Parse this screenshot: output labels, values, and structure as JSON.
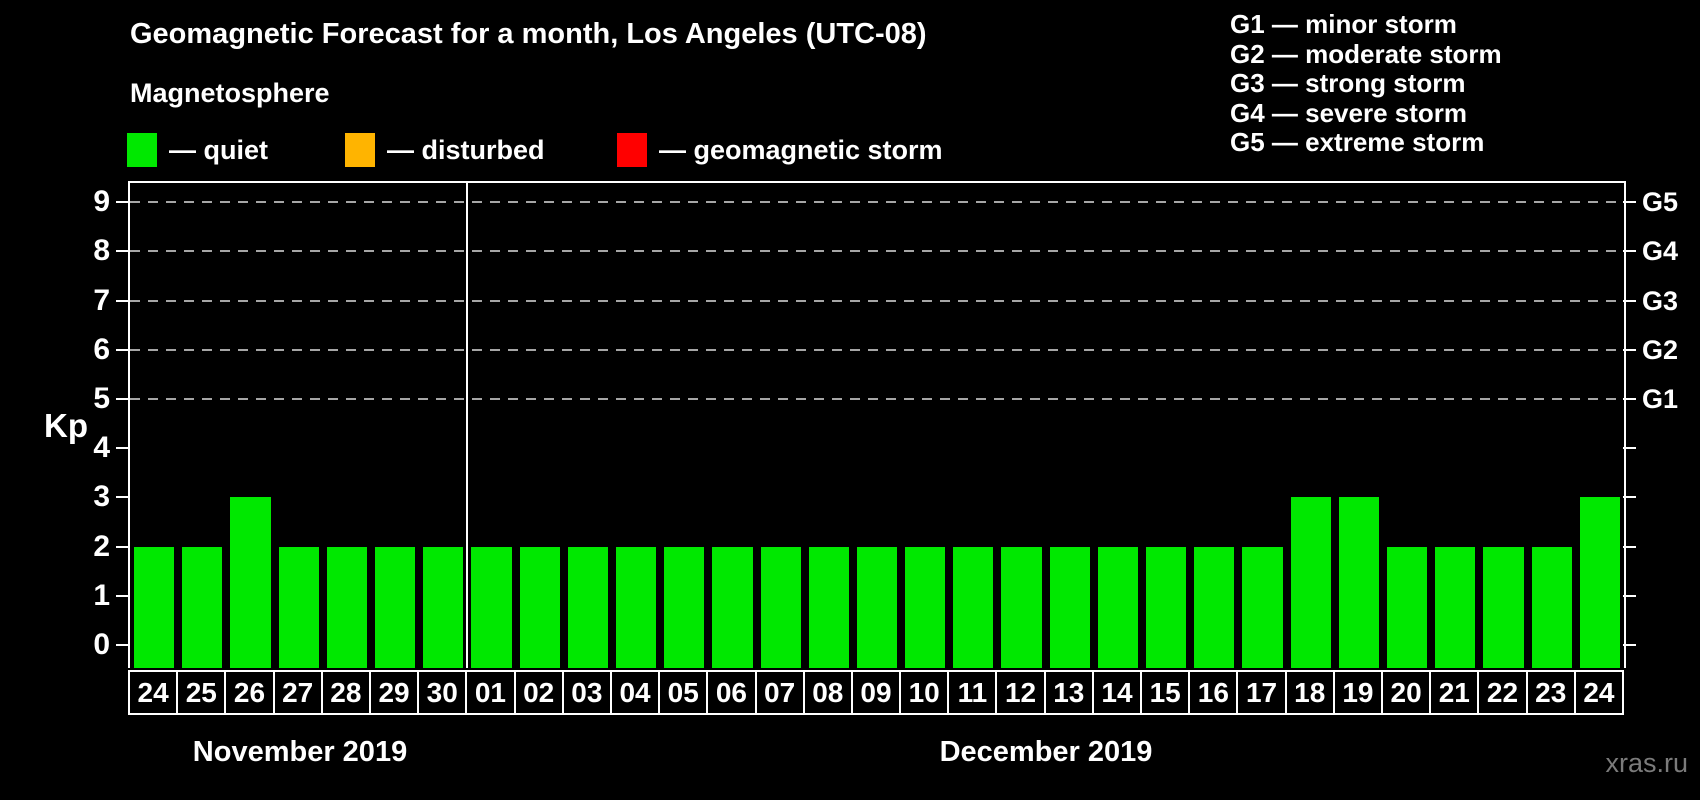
{
  "title": "Geomagnetic Forecast for a month, Los Angeles (UTC-08)",
  "subtitle": "Magnetosphere",
  "watermark": "xras.ru",
  "colors": {
    "quiet": "#00e800",
    "disturbed": "#ffb400",
    "storm": "#ff0000",
    "grid": "#a6a6a6",
    "axis": "#ffffff",
    "background": "#000000"
  },
  "legend": {
    "items": [
      {
        "key": "quiet",
        "label": "— quiet",
        "color": "#00e800"
      },
      {
        "key": "disturbed",
        "label": "— disturbed",
        "color": "#ffb400"
      },
      {
        "key": "storm",
        "label": "— geomagnetic storm",
        "color": "#ff0000"
      }
    ]
  },
  "g_scale": [
    "G1 — minor storm",
    "G2 — moderate storm",
    "G3 — strong storm",
    "G4 — severe storm",
    "G5 — extreme storm"
  ],
  "y_axis": {
    "label": "Kp",
    "ticks": [
      "0",
      "1",
      "2",
      "3",
      "4",
      "5",
      "6",
      "7",
      "8",
      "9"
    ]
  },
  "right_axis": {
    "labels": [
      "G1",
      "G2",
      "G3",
      "G4",
      "G5"
    ],
    "kp_of_first": 5
  },
  "months": [
    {
      "name": "November 2019",
      "days": [
        {
          "label": "24",
          "kp": 2
        },
        {
          "label": "25",
          "kp": 2
        },
        {
          "label": "26",
          "kp": 3
        },
        {
          "label": "27",
          "kp": 2
        },
        {
          "label": "28",
          "kp": 2
        },
        {
          "label": "29",
          "kp": 2
        },
        {
          "label": "30",
          "kp": 2
        }
      ]
    },
    {
      "name": "December 2019",
      "days": [
        {
          "label": "01",
          "kp": 2
        },
        {
          "label": "02",
          "kp": 2
        },
        {
          "label": "03",
          "kp": 2
        },
        {
          "label": "04",
          "kp": 2
        },
        {
          "label": "05",
          "kp": 2
        },
        {
          "label": "06",
          "kp": 2
        },
        {
          "label": "07",
          "kp": 2
        },
        {
          "label": "08",
          "kp": 2
        },
        {
          "label": "09",
          "kp": 2
        },
        {
          "label": "10",
          "kp": 2
        },
        {
          "label": "11",
          "kp": 2
        },
        {
          "label": "12",
          "kp": 2
        },
        {
          "label": "13",
          "kp": 2
        },
        {
          "label": "14",
          "kp": 2
        },
        {
          "label": "15",
          "kp": 2
        },
        {
          "label": "16",
          "kp": 2
        },
        {
          "label": "17",
          "kp": 2
        },
        {
          "label": "18",
          "kp": 3
        },
        {
          "label": "19",
          "kp": 3
        },
        {
          "label": "20",
          "kp": 2
        },
        {
          "label": "21",
          "kp": 2
        },
        {
          "label": "22",
          "kp": 2
        },
        {
          "label": "23",
          "kp": 2
        },
        {
          "label": "24",
          "kp": 3
        }
      ]
    }
  ],
  "chart_data": {
    "type": "bar",
    "title": "Geomagnetic Forecast for a month, Los Angeles (UTC-08)",
    "subtitle": "Magnetosphere",
    "xlabel": "",
    "ylabel": "Kp",
    "ylim": [
      0,
      9
    ],
    "grid": "dashed horizontal lines at Kp 5,6,7,8,9",
    "gridlines_at": [
      5,
      6,
      7,
      8,
      9
    ],
    "right_axis_mapping": {
      "G1": 5,
      "G2": 6,
      "G3": 7,
      "G4": 8,
      "G5": 9
    },
    "legend_position": "top-left (color meaning) and top-right (G scale)",
    "bar_color_rule": {
      "quiet": "#00e800",
      "disturbed": "#ffb400",
      "geomagnetic storm": "#ff0000"
    },
    "categories": [
      "Nov 24",
      "Nov 25",
      "Nov 26",
      "Nov 27",
      "Nov 28",
      "Nov 29",
      "Nov 30",
      "Dec 01",
      "Dec 02",
      "Dec 03",
      "Dec 04",
      "Dec 05",
      "Dec 06",
      "Dec 07",
      "Dec 08",
      "Dec 09",
      "Dec 10",
      "Dec 11",
      "Dec 12",
      "Dec 13",
      "Dec 14",
      "Dec 15",
      "Dec 16",
      "Dec 17",
      "Dec 18",
      "Dec 19",
      "Dec 20",
      "Dec 21",
      "Dec 22",
      "Dec 23",
      "Dec 24"
    ],
    "values": [
      2,
      2,
      3,
      2,
      2,
      2,
      2,
      2,
      2,
      2,
      2,
      2,
      2,
      2,
      2,
      2,
      2,
      2,
      2,
      2,
      2,
      2,
      2,
      2,
      3,
      3,
      2,
      2,
      2,
      2,
      3
    ],
    "series": [
      {
        "name": "quiet (all bars green)",
        "values": [
          2,
          2,
          3,
          2,
          2,
          2,
          2,
          2,
          2,
          2,
          2,
          2,
          2,
          2,
          2,
          2,
          2,
          2,
          2,
          2,
          2,
          2,
          2,
          2,
          3,
          3,
          2,
          2,
          2,
          2,
          3
        ]
      }
    ]
  }
}
